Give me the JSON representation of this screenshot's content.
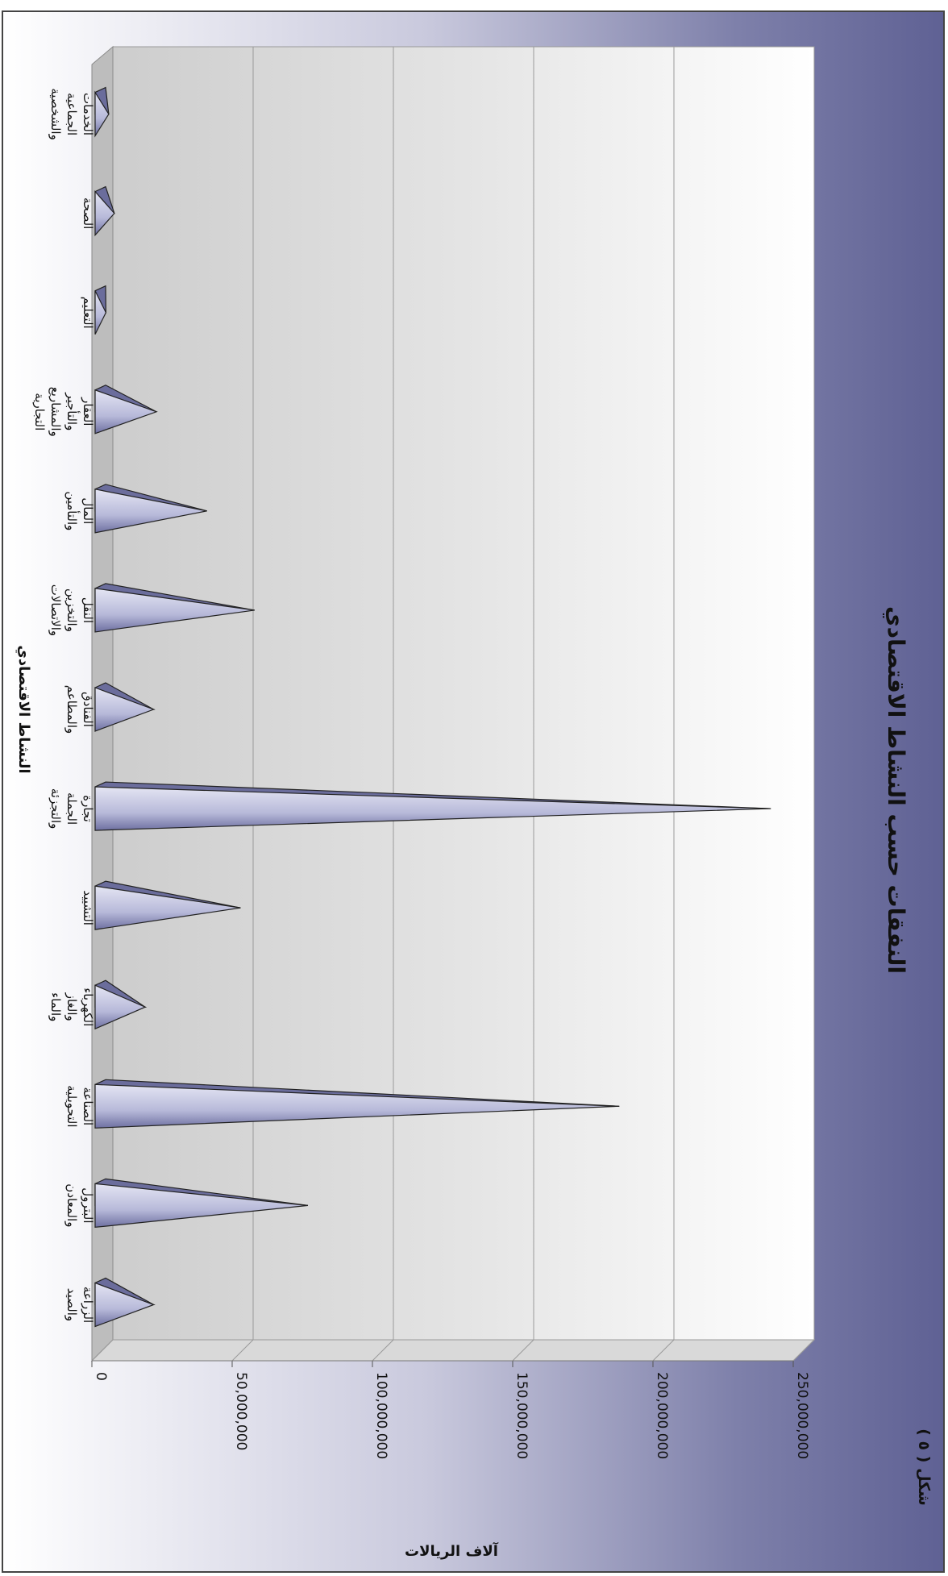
{
  "figure_label": "شكل ( ٥ )",
  "chart_data": {
    "type": "bar",
    "title": "النفقات حسب النشاط الاقتصادي",
    "xlabel": "النشاط الاقتصادي",
    "ylabel": "آلاف الريالات",
    "ylim": [
      0,
      250000000
    ],
    "y_ticks": [
      "0",
      "50,000,000",
      "100,000,000",
      "150,000,000",
      "200,000,000",
      "250,000,000"
    ],
    "grid": true,
    "categories": [
      [
        "الزراعة",
        "والصيد"
      ],
      [
        "البترول",
        "والمعادن"
      ],
      [
        "الصناعة",
        "التحويلية"
      ],
      [
        "الكهرباء",
        "والغاز",
        "والماء"
      ],
      [
        "التشييد"
      ],
      [
        "تجارة",
        "الجملة",
        "والتجزئة"
      ],
      [
        "الفنادق",
        "والمطاعم"
      ],
      [
        "النقل",
        "والتخزين",
        "والاتصالات"
      ],
      [
        "المال",
        "والتأمين"
      ],
      [
        "العقار",
        "والتأجير",
        "والمشاريع",
        "التجارية"
      ],
      [
        "التعليم"
      ],
      [
        "الصحة"
      ],
      [
        "الخدمات",
        "الجماعية",
        "والشخصية"
      ]
    ],
    "values": [
      22000000,
      77000000,
      188000000,
      19000000,
      53000000,
      242000000,
      22000000,
      58000000,
      41000000,
      23000000,
      5000000,
      8000000,
      6000000
    ],
    "colors": {
      "background_dark": "#5f6194",
      "background_light": "#ffffff",
      "bar_light": "#d4d6ec",
      "bar_dark": "#6b6d9c",
      "plot_back": "#ffffff",
      "plot_base": "#cfcfcf"
    }
  }
}
